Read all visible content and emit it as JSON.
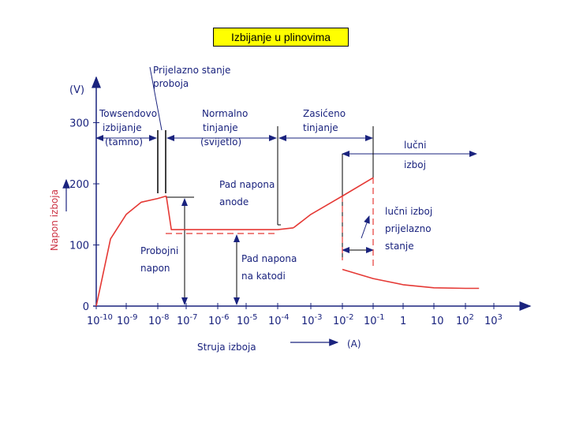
{
  "chart_data": {
    "type": "line",
    "title": "Izbijanje u plinovima",
    "xlabel": "Struja izboja",
    "xunit": "(A)",
    "ylabel": "Napon izboja",
    "yunit": "(V)",
    "x_scale": "log",
    "y_ticks": [
      "0",
      "100",
      "200",
      "300"
    ],
    "x_ticks": [
      {
        "base": "10",
        "exp": "-10",
        "value": 1e-10
      },
      {
        "base": "10",
        "exp": "-9",
        "value": 1e-09
      },
      {
        "base": "10",
        "exp": "-8",
        "value": 1e-08
      },
      {
        "base": "10",
        "exp": "-7",
        "value": 1e-07
      },
      {
        "base": "10",
        "exp": "-6",
        "value": 1e-06
      },
      {
        "base": "10",
        "exp": "-5",
        "value": 1e-05
      },
      {
        "base": "10",
        "exp": "-4",
        "value": 0.0001
      },
      {
        "base": "10",
        "exp": "-3",
        "value": 0.001
      },
      {
        "base": "10",
        "exp": "-2",
        "value": 0.01
      },
      {
        "base": "10",
        "exp": "-1",
        "value": 0.1
      },
      {
        "base": "1",
        "exp": "",
        "value": 1
      },
      {
        "base": "10",
        "exp": "",
        "value": 10
      },
      {
        "base": "10",
        "exp": "2",
        "value": 100
      },
      {
        "base": "10",
        "exp": "3",
        "value": 1000
      }
    ],
    "series": [
      {
        "points": [
          [
            1e-10,
            0
          ],
          [
            3e-10,
            110
          ],
          [
            1e-09,
            150
          ],
          [
            3e-09,
            170
          ],
          [
            1e-08,
            176
          ],
          [
            2e-08,
            180
          ]
        ]
      },
      {
        "points": [
          [
            2e-08,
            180
          ],
          [
            3e-08,
            125
          ],
          [
            1e-05,
            125
          ],
          [
            0.0001,
            125
          ],
          [
            0.0003,
            128
          ]
        ]
      },
      {
        "points": [
          [
            0.0003,
            128
          ],
          [
            0.001,
            150
          ],
          [
            0.01,
            180
          ],
          [
            0.1,
            210
          ]
        ]
      },
      {
        "points": [
          [
            0.01,
            60
          ],
          [
            0.1,
            45
          ],
          [
            1,
            35
          ],
          [
            10,
            30
          ],
          [
            100,
            29
          ],
          [
            300,
            29
          ]
        ]
      }
    ],
    "annotations": {
      "prijelazno": [
        "Prijelazno stanje",
        "proboja"
      ],
      "towsend": [
        "Towsendovo",
        "izbijanje",
        "(tamno)"
      ],
      "normalno": [
        "Normalno",
        "tinjanje",
        "(svijetlo)"
      ],
      "zasiceno": [
        "Zasićeno",
        "tinjanje"
      ],
      "lucni": [
        "lučni",
        "izboj"
      ],
      "pad_anode": [
        "Pad napona",
        "anode"
      ],
      "lucni_prijelazno": [
        "lučni izboj",
        "prijelazno",
        "stanje"
      ],
      "probojni": [
        "Probojni",
        "napon"
      ],
      "pad_katodi": [
        "Pad napona",
        "na katodi"
      ]
    },
    "colors": {
      "curve": "#e53935",
      "axis": "#1a237e",
      "text": "#cc3344",
      "title_bg": "#ffff00"
    }
  }
}
